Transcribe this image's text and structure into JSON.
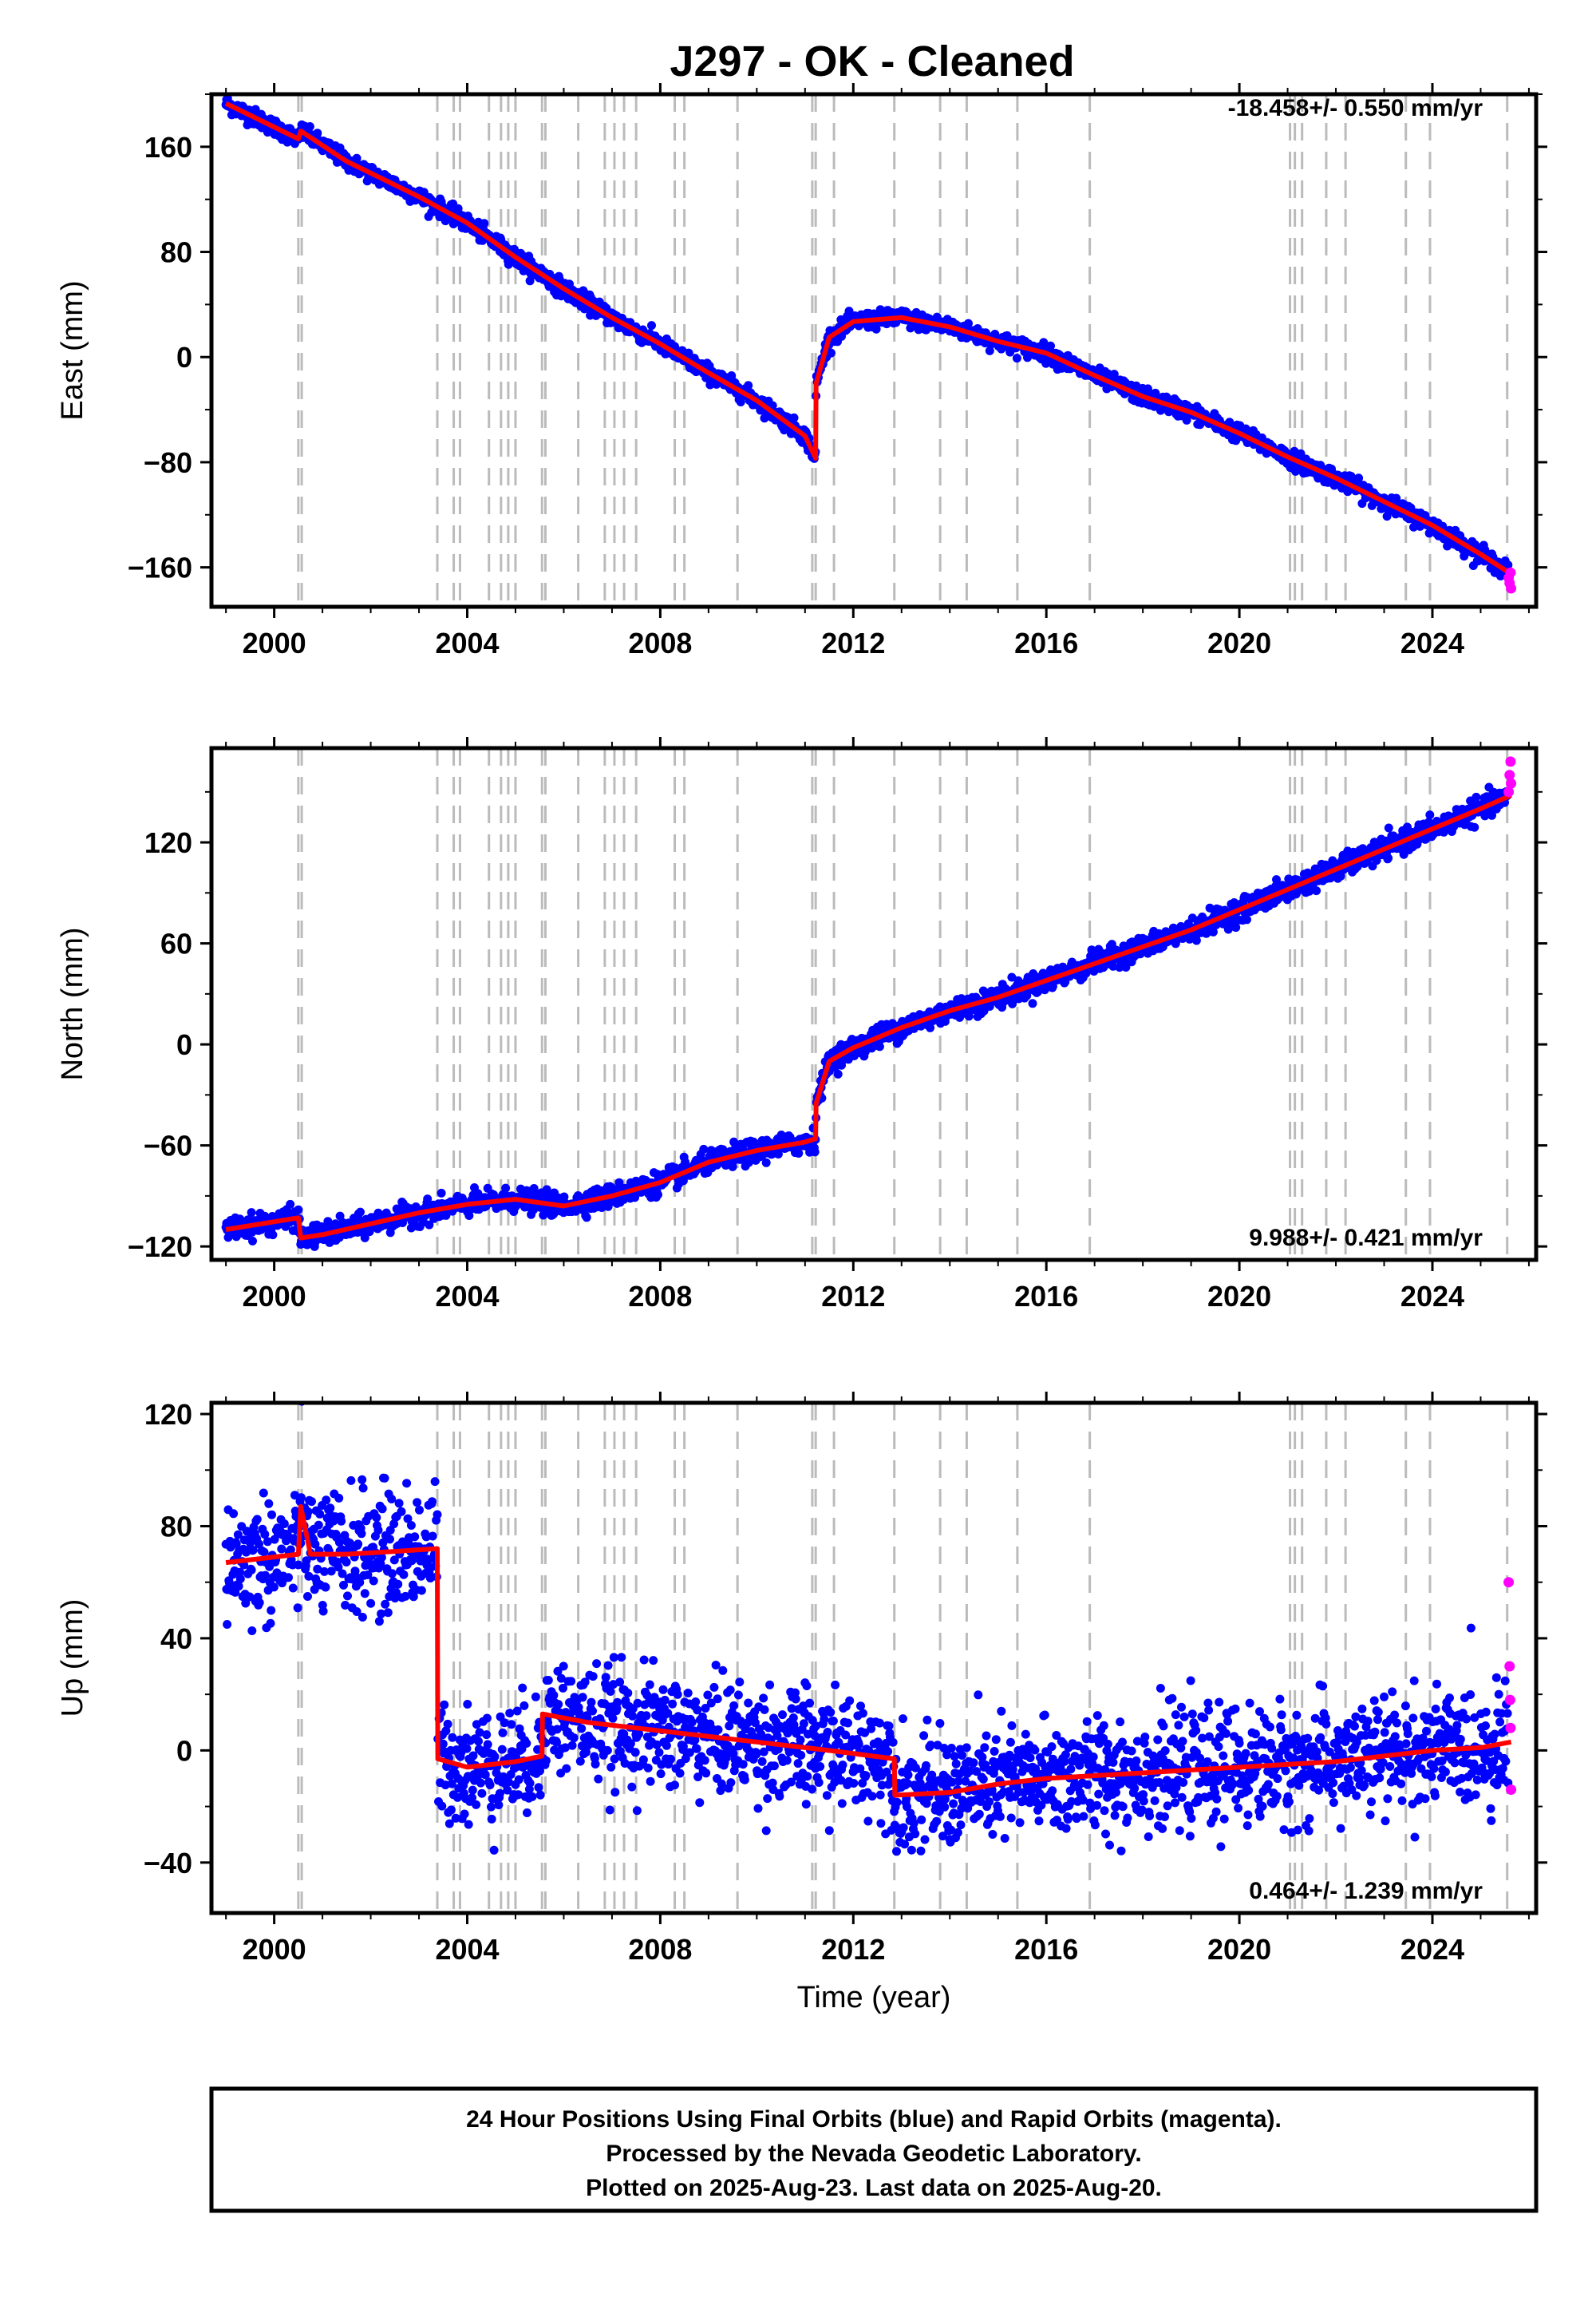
{
  "title": "J297  - OK - Cleaned",
  "footer": {
    "line1": "24 Hour Positions Using Final Orbits (blue) and Rapid Orbits (magenta).",
    "line2": "Processed by the Nevada Geodetic Laboratory.",
    "line3": "Plotted on 2025-Aug-23. Last data on 2025-Aug-20."
  },
  "colors": {
    "final_orbits": "#0000ff",
    "rapid_orbits": "#ff00ff",
    "model": "#ff0000",
    "event_lines": "#bbbbbb"
  },
  "chart_data": [
    {
      "type": "scatter",
      "panel": "east",
      "title": "J297  - OK - Cleaned",
      "xlabel": "",
      "ylabel": "East (mm)",
      "rate_label": "-18.458+/- 0.550 mm/yr",
      "xlim": [
        1998.7,
        2026.15
      ],
      "ylim": [
        -190,
        200
      ],
      "yticks": [
        -160,
        -80,
        0,
        80,
        160
      ],
      "xticks": [
        2000,
        2004,
        2008,
        2012,
        2016,
        2020,
        2024
      ],
      "grid": false,
      "event_lines": [
        2000.5,
        2000.57,
        2003.38,
        2003.72,
        2003.85,
        2004.45,
        2004.7,
        2004.85,
        2005.0,
        2005.55,
        2005.62,
        2006.3,
        2006.85,
        2007.05,
        2007.25,
        2007.5,
        2008.3,
        2008.5,
        2009.6,
        2011.15,
        2011.22,
        2011.6,
        2012.85,
        2013.8,
        2014.35,
        2015.4,
        2016.9,
        2021.05,
        2021.15,
        2021.3,
        2021.8,
        2022.2,
        2023.45,
        2023.95,
        2025.55
      ],
      "series": [
        {
          "name": "model",
          "x": [
            1999.0,
            2000.5,
            2000.55,
            2001.5,
            2003.0,
            2004.0,
            2005.0,
            2006.0,
            2007.0,
            2008.0,
            2009.0,
            2010.0,
            2011.0,
            2011.22,
            2011.23,
            2011.5,
            2012.0,
            2013.0,
            2014.0,
            2015.0,
            2016.0,
            2017.0,
            2018.0,
            2019.0,
            2020.0,
            2021.0,
            2022.0,
            2023.0,
            2024.0,
            2025.0,
            2025.63
          ],
          "y": [
            193,
            166,
            172,
            149,
            122,
            102,
            76,
            52,
            30,
            10,
            -12,
            -33,
            -60,
            -77,
            -20,
            15,
            27,
            30,
            23,
            12,
            3,
            -14,
            -30,
            -42,
            -58,
            -76,
            -92,
            -110,
            -128,
            -150,
            -165
          ]
        }
      ],
      "points": {
        "final_orbits": "daily positions 1999.0 to 2025.6 scattered about the model, sigma ~3 mm",
        "rapid_orbits_x": [
          2025.58,
          2025.6,
          2025.62,
          2025.63
        ],
        "rapid_orbits_y": [
          -168,
          -172,
          -164,
          -176
        ]
      }
    },
    {
      "type": "scatter",
      "panel": "north",
      "xlabel": "",
      "ylabel": "North (mm)",
      "rate_label": "9.988+/- 0.421 mm/yr",
      "xlim": [
        1998.7,
        2026.15
      ],
      "ylim": [
        -128,
        176
      ],
      "yticks": [
        -120,
        -60,
        0,
        60,
        120
      ],
      "xticks": [
        2000,
        2004,
        2008,
        2012,
        2016,
        2020,
        2024
      ],
      "grid": false,
      "series": [
        {
          "name": "model",
          "x": [
            1999.0,
            2000.5,
            2000.55,
            2001.0,
            2003.0,
            2004.0,
            2005.0,
            2006.0,
            2007.0,
            2008.0,
            2009.0,
            2010.0,
            2011.0,
            2011.22,
            2011.23,
            2011.5,
            2012.0,
            2013.0,
            2014.0,
            2015.0,
            2016.0,
            2017.0,
            2018.0,
            2019.0,
            2020.0,
            2021.0,
            2022.0,
            2023.0,
            2024.0,
            2025.0,
            2025.63
          ],
          "y": [
            -110,
            -103,
            -115,
            -113,
            -100,
            -95,
            -92,
            -96,
            -90,
            -82,
            -70,
            -63,
            -58,
            -56,
            -35,
            -10,
            -2,
            10,
            20,
            28,
            38,
            48,
            58,
            68,
            80,
            92,
            104,
            116,
            128,
            140,
            148
          ]
        }
      ],
      "points": {
        "final_orbits": "daily positions 1999.0 to 2025.6 scattered about the model, sigma ~3 mm",
        "rapid_orbits_x": [
          2025.58,
          2025.6,
          2025.62,
          2025.63
        ],
        "rapid_orbits_y": [
          150,
          160,
          168,
          155
        ]
      }
    },
    {
      "type": "scatter",
      "panel": "up",
      "xlabel": "Time (year)",
      "ylabel": "Up (mm)",
      "rate_label": "0.464+/- 1.239 mm/yr",
      "xlim": [
        1998.7,
        2026.15
      ],
      "ylim": [
        -58,
        124
      ],
      "yticks": [
        -40,
        0,
        40,
        80,
        120
      ],
      "xticks": [
        2000,
        2004,
        2008,
        2012,
        2016,
        2020,
        2024
      ],
      "grid": false,
      "series": [
        {
          "name": "model",
          "x": [
            1999.0,
            2000.5,
            2000.55,
            2000.75,
            2001.5,
            2002.5,
            2003.38,
            2003.39,
            2004.0,
            2005.0,
            2005.55,
            2005.56,
            2006.5,
            2007.5,
            2008.5,
            2009.5,
            2010.5,
            2011.5,
            2012.85,
            2012.86,
            2014.0,
            2015.0,
            2016.0,
            2017.0,
            2018.0,
            2019.0,
            2020.0,
            2021.0,
            2022.0,
            2023.0,
            2024.0,
            2025.0,
            2025.63
          ],
          "y": [
            67,
            70,
            87,
            70,
            70,
            71,
            72,
            -3,
            -6,
            -4,
            -2,
            13,
            10,
            8,
            6,
            4,
            2,
            0,
            -3,
            -16,
            -15,
            -12,
            -10,
            -9,
            -8,
            -7,
            -6,
            -5,
            -4,
            -2,
            0,
            1,
            3
          ]
        }
      ],
      "points": {
        "final_orbits": "daily positions 1999.0 to 2025.6 scattered about the model, sigma ~10 mm",
        "rapid_orbits_x": [
          2025.58,
          2025.6,
          2025.61,
          2025.62,
          2025.63
        ],
        "rapid_orbits_y": [
          60,
          30,
          18,
          8,
          -14
        ]
      }
    }
  ]
}
